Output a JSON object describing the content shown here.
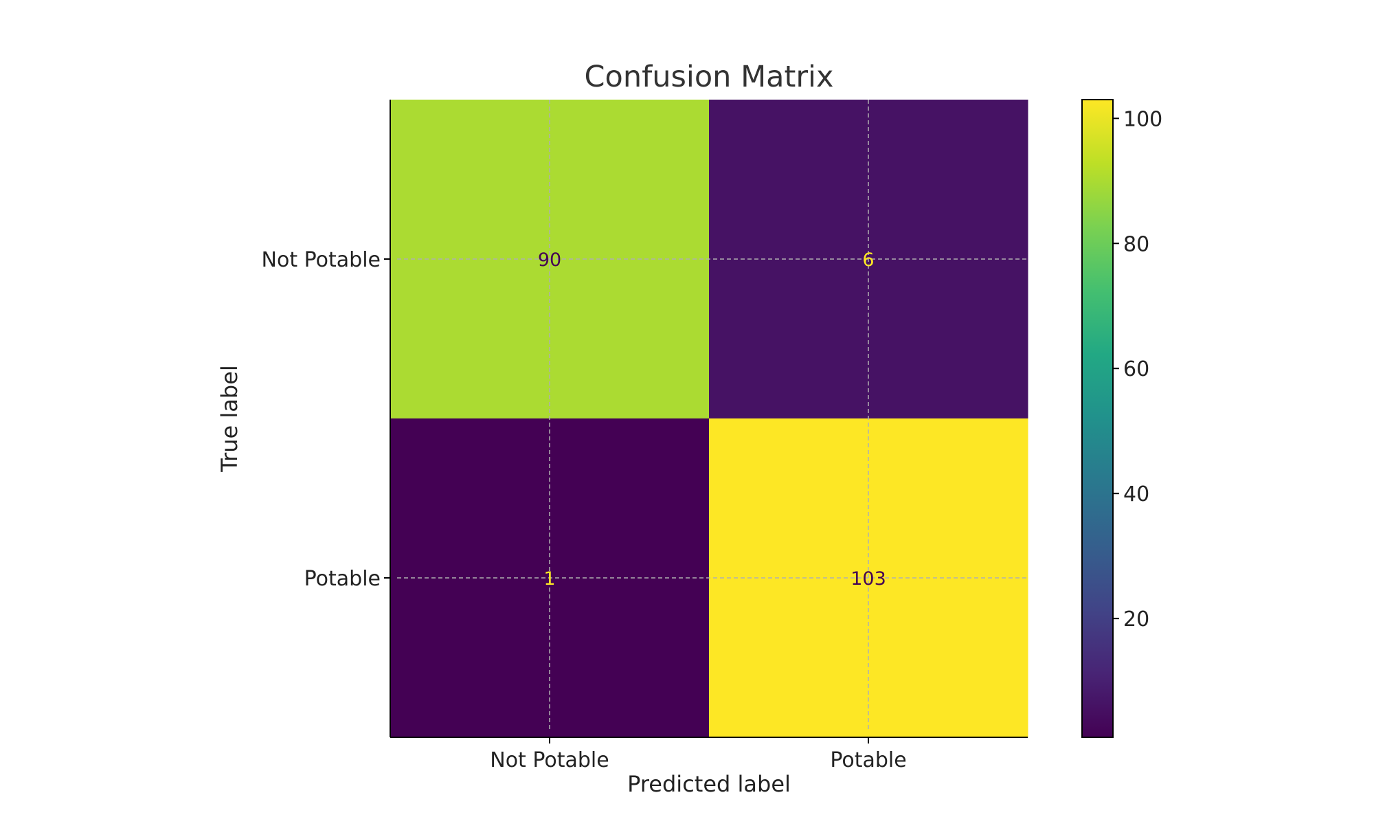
{
  "chart_data": {
    "type": "heatmap",
    "title": "Confusion Matrix",
    "xlabel": "Predicted label",
    "ylabel": "True label",
    "x_categories": [
      "Not Potable",
      "Potable"
    ],
    "y_categories": [
      "Not Potable",
      "Potable"
    ],
    "values": [
      [
        90,
        6
      ],
      [
        1,
        103
      ]
    ],
    "colormap": "viridis",
    "value_range": [
      1,
      103
    ],
    "colorbar_ticks": [
      20,
      40,
      60,
      80,
      100
    ],
    "grid": true,
    "text_colors": {
      "on_dark": "#fde725",
      "on_light": "#440154"
    }
  }
}
